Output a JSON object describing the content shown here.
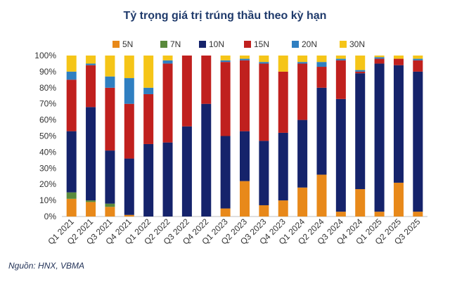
{
  "chart_data": {
    "type": "bar",
    "stacked": true,
    "title": "Tỷ trọng giá trị trúng thầu theo kỳ hạn",
    "categories": [
      "Q1 2021",
      "Q2 2021",
      "Q3 2021",
      "Q4 2021",
      "Q1 2022",
      "Q2 2022",
      "Q3 2022",
      "Q4 2022",
      "Q1 2023",
      "Q2 2023",
      "Q3 2023",
      "Q4 2023",
      "Q1 2024",
      "Q2 2024",
      "Q3 2024",
      "Q4 2024",
      "Q1 2025",
      "Q2 2025",
      "Q3 2025"
    ],
    "y_tick_labels": [
      "0%",
      "10%",
      "20%",
      "30%",
      "40%",
      "50%",
      "60%",
      "70%",
      "80%",
      "90%",
      "100%"
    ],
    "ylim": [
      0,
      100
    ],
    "legend_position": "top",
    "series": [
      {
        "name": "5N",
        "color": "#e8891a",
        "values": [
          11,
          9,
          6,
          1,
          0,
          0,
          0,
          0,
          5,
          22,
          7,
          10,
          18,
          26,
          3,
          17,
          3,
          21,
          3
        ]
      },
      {
        "name": "7N",
        "color": "#5a8a3c",
        "values": [
          4,
          1,
          2,
          0,
          0,
          0,
          0,
          0,
          0,
          0,
          0,
          0,
          0,
          0,
          0,
          0,
          0,
          0,
          0
        ]
      },
      {
        "name": "10N",
        "color": "#15236b",
        "values": [
          38,
          58,
          33,
          35,
          45,
          46,
          56,
          70,
          45,
          31,
          40,
          42,
          42,
          54,
          70,
          72,
          92,
          73,
          87
        ]
      },
      {
        "name": "15N",
        "color": "#c0201e",
        "values": [
          32,
          26,
          39,
          34,
          31,
          49,
          44,
          30,
          46,
          44,
          48,
          38,
          35,
          13,
          24,
          1,
          3,
          4,
          7
        ]
      },
      {
        "name": "20N",
        "color": "#2f7fc1",
        "values": [
          5,
          1,
          7,
          16,
          4,
          2,
          0,
          0,
          1,
          1,
          1,
          0,
          1,
          3,
          1,
          1,
          1,
          0,
          1
        ]
      },
      {
        "name": "30N",
        "color": "#f5c518",
        "values": [
          10,
          5,
          13,
          14,
          20,
          3,
          0,
          0,
          3,
          2,
          4,
          10,
          4,
          4,
          2,
          9,
          1,
          2,
          2
        ]
      }
    ]
  },
  "source": "Nguồn: HNX, VBMA"
}
